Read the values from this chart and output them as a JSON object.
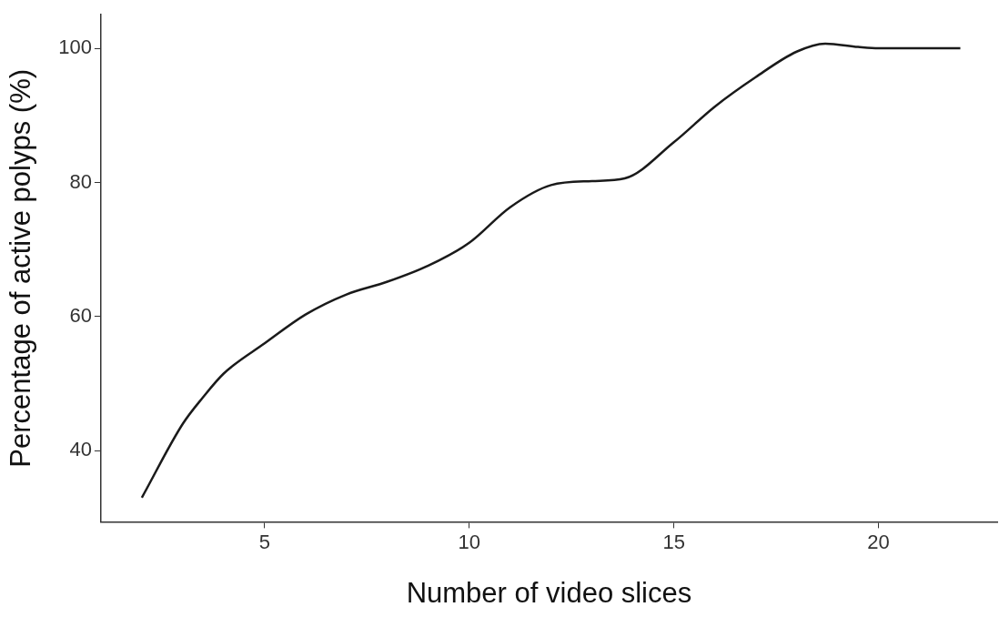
{
  "chart_data": {
    "type": "line",
    "xlabel": "Number of video slices",
    "ylabel": "Percentage of active polyps (%)",
    "xlim": [
      1,
      22.9
    ],
    "xticks": [
      5,
      10,
      15,
      20
    ],
    "ylim": [
      29.4,
      105
    ],
    "yticks": [
      40,
      60,
      80,
      100
    ],
    "grid": false,
    "legend": false,
    "marker": "none",
    "line_style": "solid",
    "series": [
      {
        "color": "#1a1a1a",
        "x": [
          2,
          3,
          3.5,
          4,
          5,
          6,
          7,
          8,
          9,
          10,
          11,
          12,
          13,
          13.8,
          15,
          16,
          17,
          18,
          18.7,
          19.5,
          20,
          22
        ],
        "values": [
          33,
          44,
          48,
          51.5,
          56,
          60.3,
          63.3,
          65.2,
          67.6,
          71,
          76.3,
          79.6,
          80.2,
          80.6,
          86,
          91.3,
          95.7,
          99.5,
          100.7,
          100.2,
          100,
          100
        ]
      }
    ]
  }
}
